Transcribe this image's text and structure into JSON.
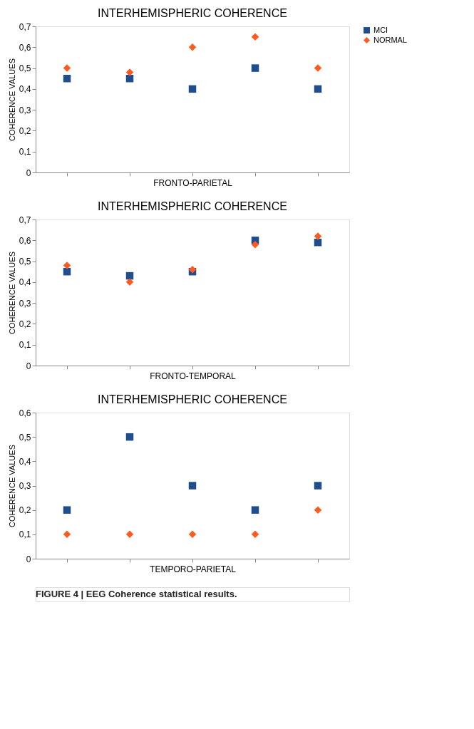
{
  "chart_data": [
    {
      "type": "scatter",
      "title": "INTERHEMISPHERIC COHERENCE",
      "xlabel": "FRONTO-PARIETAL",
      "ylabel": "COHERENCE VALUES",
      "categories": [
        null,
        null,
        null,
        null,
        null
      ],
      "ylim": [
        0,
        0.7
      ],
      "yticks": [
        {
          "value": 0,
          "label": "0"
        },
        {
          "value": 0.1,
          "label": "0,1"
        },
        {
          "value": 0.2,
          "label": "0,2"
        },
        {
          "value": 0.3,
          "label": "0,3"
        },
        {
          "value": 0.4,
          "label": "0,4"
        },
        {
          "value": 0.5,
          "label": "0,5"
        },
        {
          "value": 0.6,
          "label": "0,6"
        },
        {
          "value": 0.7,
          "label": "0,7"
        }
      ],
      "grid": false,
      "legend": "right",
      "tick_labels": "y",
      "series": [
        {
          "name": "MCI",
          "color": "#1f4e8c",
          "marker": "square",
          "values": [
            0.45,
            0.45,
            0.4,
            0.5,
            0.4
          ]
        },
        {
          "name": "NORMAL",
          "color": "#ff5a1f",
          "marker": "diamond",
          "values": [
            0.5,
            0.48,
            0.6,
            0.65,
            0.5
          ]
        }
      ]
    },
    {
      "type": "scatter",
      "title": "INTERHEMISPHERIC COHERENCE",
      "xlabel": "FRONTO-TEMPORAL",
      "ylabel": "COHERENCE VALUES",
      "categories": [
        null,
        null,
        null,
        null,
        null
      ],
      "ylim": [
        0,
        0.7
      ],
      "yticks": [
        {
          "value": 0,
          "label": "0"
        },
        {
          "value": 0.1,
          "label": "0,1"
        },
        {
          "value": 0.2,
          "label": "0,2"
        },
        {
          "value": 0.3,
          "label": "0,3"
        },
        {
          "value": 0.4,
          "label": "0,4"
        },
        {
          "value": 0.5,
          "label": "0,5"
        },
        {
          "value": 0.6,
          "label": "0,6"
        },
        {
          "value": 0.7,
          "label": "0,7"
        }
      ],
      "grid": false,
      "legend": "right",
      "tick_labels": "y",
      "series": [
        {
          "name": "MCI",
          "color": "#1f4e8c",
          "marker": "square",
          "values": [
            0.45,
            0.43,
            0.45,
            0.6,
            0.59
          ]
        },
        {
          "name": "NORMAL",
          "color": "#ff5a1f",
          "marker": "diamond",
          "values": [
            0.48,
            0.4,
            0.46,
            0.58,
            0.62
          ]
        }
      ]
    },
    {
      "type": "scatter",
      "title": "INTERHEMISPHERIC COHERENCE",
      "xlabel": "TEMPORO-PARIETAL",
      "ylabel": "COHERENCE VALUES",
      "categories": [
        null,
        null,
        null,
        null,
        null
      ],
      "ylim": [
        0,
        0.6
      ],
      "yticks": [
        {
          "value": 0,
          "label": "0"
        },
        {
          "value": 0.1,
          "label": "0,1"
        },
        {
          "value": 0.2,
          "label": "0,2"
        },
        {
          "value": 0.3,
          "label": "0,3"
        },
        {
          "value": 0.4,
          "label": "0,4"
        },
        {
          "value": 0.5,
          "label": "0,5"
        },
        {
          "value": 0.6,
          "label": "0,6"
        }
      ],
      "grid": false,
      "legend": "right",
      "tick_labels": "y",
      "annotations": [
        "FIGURE 4 | EEG Coherence statistical results."
      ],
      "series": [
        {
          "name": "MCI",
          "color": "#1f4e8c",
          "marker": "square",
          "values": [
            0.2,
            0.5,
            0.3,
            0.2,
            0.3
          ]
        },
        {
          "name": "NORMAL",
          "color": "#ff5a1f",
          "marker": "diamond",
          "values": [
            0.1,
            0.1,
            0.1,
            0.1,
            0.2
          ]
        }
      ]
    }
  ]
}
